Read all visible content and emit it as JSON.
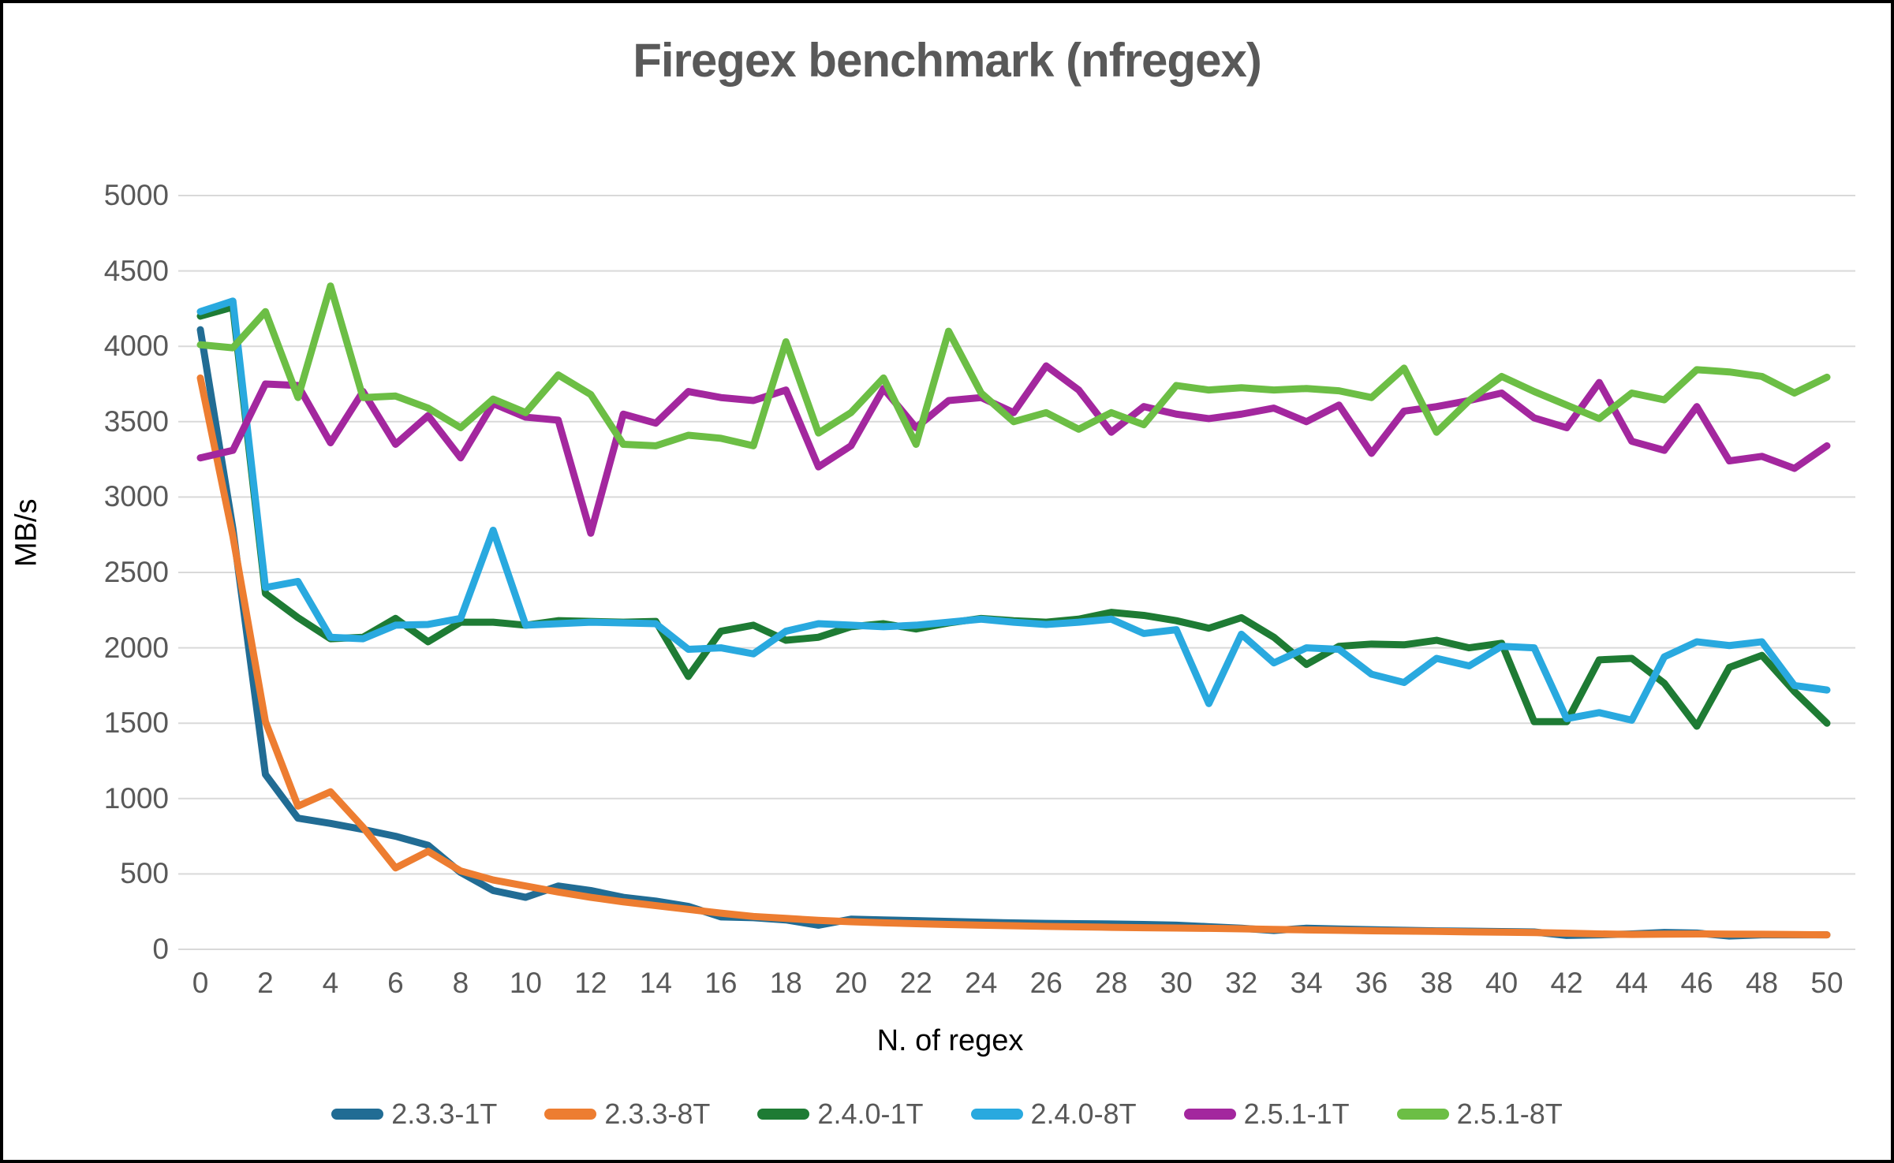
{
  "title": "Firegex benchmark (nfregex)",
  "chart_data": {
    "type": "line",
    "title": "Firegex benchmark (nfregex)",
    "xlabel": "N. of regex",
    "ylabel": "MB/s",
    "xlim": [
      0,
      50
    ],
    "ylim": [
      0,
      5000
    ],
    "x_tick_labels": [
      0,
      2,
      4,
      6,
      8,
      10,
      12,
      14,
      16,
      18,
      20,
      22,
      24,
      26,
      28,
      30,
      32,
      34,
      36,
      38,
      40,
      42,
      44,
      46,
      48,
      50
    ],
    "y_tick_labels": [
      0,
      500,
      1000,
      1500,
      2000,
      2500,
      3000,
      3500,
      4000,
      4500,
      5000
    ],
    "grid": "horizontal",
    "gridline_color": "#D9D9D9",
    "text_color": "#595959",
    "legend_position": "bottom",
    "x": [
      0,
      1,
      2,
      3,
      4,
      5,
      6,
      7,
      8,
      9,
      10,
      11,
      12,
      13,
      14,
      15,
      16,
      17,
      18,
      19,
      20,
      21,
      22,
      23,
      24,
      25,
      26,
      27,
      28,
      29,
      30,
      31,
      32,
      33,
      34,
      35,
      36,
      37,
      38,
      39,
      40,
      41,
      42,
      43,
      44,
      45,
      46,
      47,
      48,
      49,
      50
    ],
    "series": [
      {
        "name": "2.3.3-1T",
        "color": "#216C94",
        "values": [
          4110,
          2790,
          1160,
          870,
          835,
          795,
          750,
          690,
          510,
          390,
          345,
          420,
          390,
          345,
          320,
          285,
          215,
          210,
          195,
          160,
          200,
          195,
          190,
          185,
          180,
          175,
          172,
          170,
          168,
          165,
          160,
          150,
          140,
          125,
          140,
          135,
          130,
          126,
          122,
          120,
          118,
          115,
          92,
          96,
          102,
          112,
          108,
          88,
          96,
          96,
          96
        ]
      },
      {
        "name": "2.3.3-8T",
        "color": "#ED7D31",
        "values": [
          3790,
          2740,
          1510,
          950,
          1045,
          810,
          540,
          650,
          520,
          460,
          420,
          380,
          345,
          315,
          290,
          265,
          240,
          218,
          205,
          192,
          183,
          176,
          170,
          165,
          160,
          156,
          152,
          149,
          146,
          143,
          141,
          139,
          136,
          132,
          129,
          126,
          123,
          121,
          119,
          116,
          114,
          111,
          107,
          102,
          99,
          101,
          102,
          101,
          100,
          98,
          96
        ]
      },
      {
        "name": "2.4.0-1T",
        "color": "#1E7B34",
        "values": [
          4200,
          4260,
          2360,
          2200,
          2060,
          2070,
          2195,
          2040,
          2170,
          2170,
          2150,
          2180,
          2175,
          2170,
          2175,
          1810,
          2110,
          2150,
          2050,
          2070,
          2140,
          2160,
          2125,
          2165,
          2195,
          2180,
          2170,
          2190,
          2235,
          2215,
          2180,
          2130,
          2200,
          2070,
          1890,
          2010,
          2025,
          2020,
          2050,
          2000,
          2030,
          1510,
          1510,
          1920,
          1930,
          1765,
          1480,
          1870,
          1950,
          1710,
          1500
        ]
      },
      {
        "name": "2.4.0-8T",
        "color": "#29A9DF",
        "values": [
          4230,
          4300,
          2400,
          2440,
          2070,
          2060,
          2150,
          2155,
          2195,
          2780,
          2150,
          2160,
          2170,
          2165,
          2160,
          1990,
          2000,
          1960,
          2110,
          2160,
          2150,
          2140,
          2150,
          2170,
          2190,
          2170,
          2155,
          2170,
          2190,
          2095,
          2120,
          1630,
          2090,
          1900,
          2000,
          1990,
          1825,
          1770,
          1930,
          1880,
          2010,
          2000,
          1530,
          1570,
          1520,
          1940,
          2040,
          2015,
          2040,
          1750,
          1720
        ]
      },
      {
        "name": "2.5.1-1T",
        "color": "#A3279E",
        "values": [
          3260,
          3310,
          3750,
          3740,
          3360,
          3700,
          3350,
          3540,
          3260,
          3620,
          3530,
          3510,
          2760,
          3550,
          3490,
          3700,
          3660,
          3640,
          3710,
          3200,
          3340,
          3720,
          3460,
          3640,
          3660,
          3560,
          3870,
          3710,
          3430,
          3600,
          3550,
          3520,
          3550,
          3590,
          3500,
          3610,
          3290,
          3570,
          3600,
          3640,
          3690,
          3525,
          3460,
          3760,
          3370,
          3310,
          3600,
          3240,
          3270,
          3190,
          3340
        ]
      },
      {
        "name": "2.5.1-8T",
        "color": "#6CBE45",
        "values": [
          4010,
          3990,
          4230,
          3660,
          4400,
          3660,
          3670,
          3590,
          3460,
          3650,
          3560,
          3810,
          3680,
          3350,
          3340,
          3410,
          3390,
          3340,
          4030,
          3425,
          3560,
          3790,
          3350,
          4100,
          3690,
          3500,
          3560,
          3450,
          3560,
          3480,
          3740,
          3710,
          3725,
          3710,
          3720,
          3705,
          3660,
          3855,
          3430,
          3640,
          3800,
          3700,
          3610,
          3520,
          3690,
          3645,
          3845,
          3830,
          3800,
          3690,
          3795
        ]
      }
    ]
  }
}
